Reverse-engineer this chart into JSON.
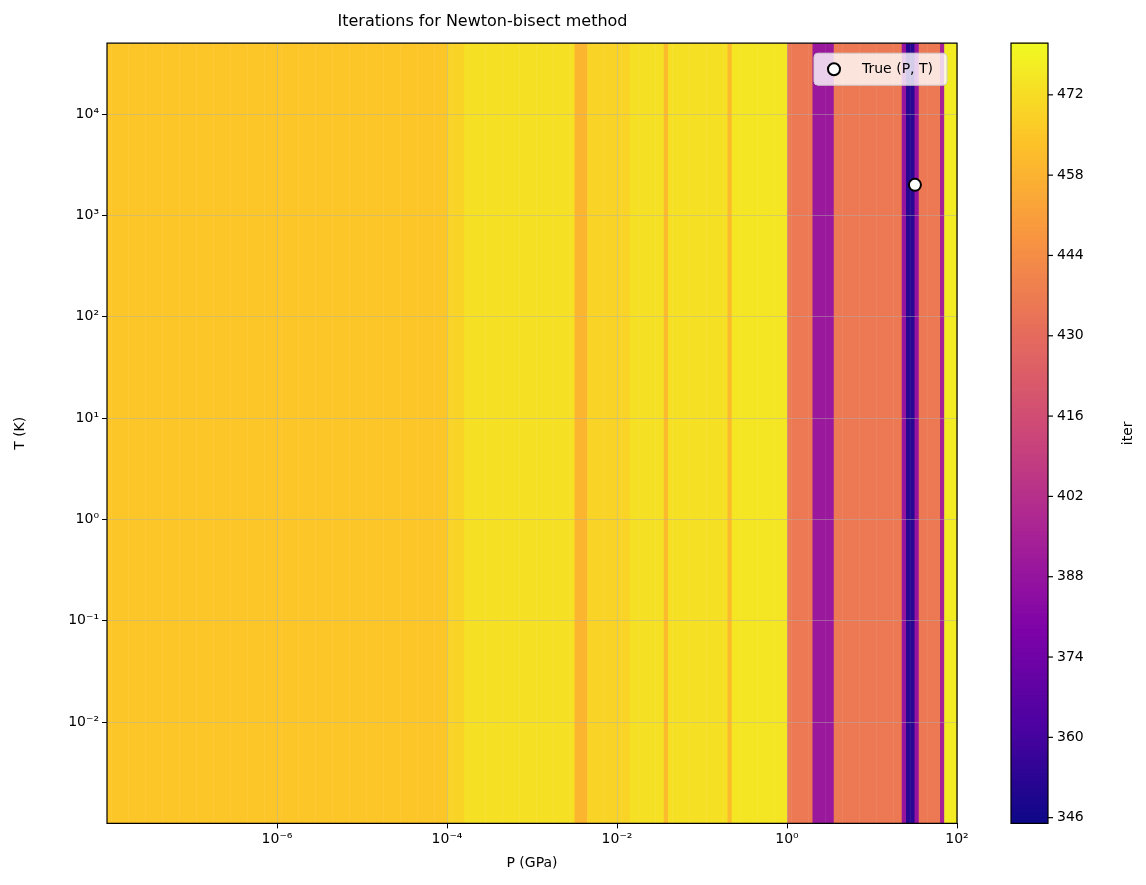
{
  "chart_data": {
    "type": "heatmap",
    "title": "Iterations for Newton-bisect method",
    "xlabel": "P (GPa)",
    "ylabel": "T (K)",
    "clabel": "iter",
    "cells": [
      [
        465,
        465,
        465,
        465,
        465,
        465,
        465,
        465,
        465,
        465,
        465,
        465,
        465,
        465,
        465,
        465,
        465,
        465,
        465,
        465,
        465,
        465,
        465,
        465,
        465,
        465,
        465,
        465,
        465,
        465,
        465,
        465,
        465,
        465,
        465,
        465,
        465,
        465,
        465,
        465,
        465,
        465,
        465,
        465,
        465,
        465,
        465,
        465,
        465,
        465,
        465,
        465,
        465,
        465,
        465,
        465,
        465,
        465,
        465,
        465,
        465,
        465,
        465,
        465,
        465,
        465,
        465,
        465,
        465,
        465,
        465,
        465,
        465,
        465,
        465,
        465,
        465,
        465,
        465,
        465,
        469,
        469,
        469,
        469,
        473,
        473,
        473,
        473,
        473,
        473,
        473,
        473,
        473,
        473,
        473,
        473,
        473,
        473,
        473,
        473,
        473,
        473,
        473,
        473,
        473,
        473,
        473,
        473,
        473,
        473,
        459,
        459,
        459,
        469,
        469,
        469,
        469,
        469,
        469,
        469,
        469,
        469,
        469,
        473,
        473,
        473,
        473,
        473,
        473,
        473,
        473,
        461,
        473,
        473,
        473,
        473,
        473,
        473,
        473,
        473,
        473,
        473,
        473,
        473,
        473,
        473,
        461,
        475,
        475,
        475,
        475,
        475,
        475,
        475,
        475,
        475,
        475,
        475,
        475,
        475,
        436,
        436,
        436,
        436,
        436,
        436,
        390,
        390,
        390,
        390,
        390,
        436,
        436,
        436,
        436,
        436,
        436,
        436,
        436,
        436,
        436,
        436,
        436,
        436,
        436,
        436,
        436,
        388,
        352,
        352,
        388,
        436,
        436,
        436,
        436,
        436,
        395,
        477,
        477,
        477
      ]
    ],
    "clim": [
      345,
      481
    ],
    "cticks": [
      346,
      360,
      374,
      388,
      402,
      416,
      430,
      444,
      458,
      472
    ],
    "log": "xy",
    "xlim": [
      1e-08,
      100
    ],
    "ylim": [
      0.001,
      50000
    ],
    "xticks": [
      {
        "value": 1e-06,
        "label": "10⁻⁶"
      },
      {
        "value": 0.0001,
        "label": "10⁻⁴"
      },
      {
        "value": 0.01,
        "label": "10⁻²"
      },
      {
        "value": 1,
        "label": "10⁰"
      },
      {
        "value": 100,
        "label": "10²"
      }
    ],
    "yticks": [
      {
        "value": 0.01,
        "label": "10⁻²"
      },
      {
        "value": 0.1,
        "label": "10⁻¹"
      },
      {
        "value": 1,
        "label": "10⁰"
      },
      {
        "value": 10,
        "label": "10¹"
      },
      {
        "value": 100,
        "label": "10²"
      },
      {
        "value": 1000,
        "label": "10³"
      },
      {
        "value": 10000,
        "label": "10⁴"
      }
    ],
    "series": [
      {
        "type": "scatter",
        "name": "True (P, T)",
        "color": "#ffffff",
        "x": [
          32
        ],
        "values": [
          2000
        ]
      }
    ],
    "marker": "circle",
    "grid": true,
    "legend": "top right"
  }
}
